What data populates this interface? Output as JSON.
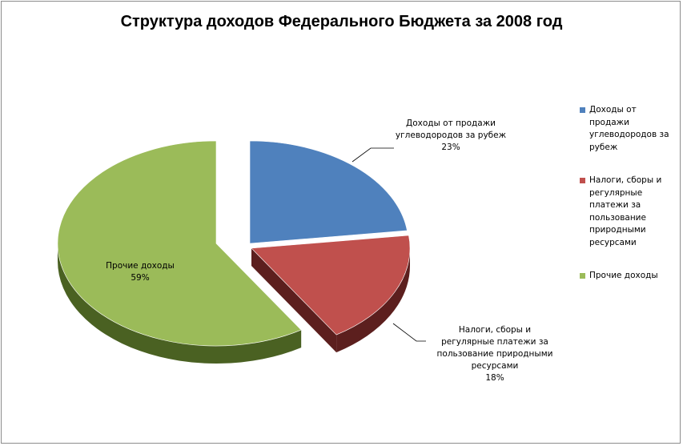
{
  "chart_data": {
    "type": "pie",
    "title": "Структура доходов Федерального Бюджета за 2008 год",
    "categories": [
      "Доходы от продажи углеводородов за рубеж",
      "Налоги, сборы и регулярные платежи за пользование природными ресурсами",
      "Прочие доходы"
    ],
    "values": [
      23,
      18,
      59
    ],
    "data_labels": [
      {
        "lines": [
          "Доходы от продажи",
          "углеводородов за рубеж"
        ],
        "pct": "23%"
      },
      {
        "lines": [
          "Налоги, сборы и",
          "регулярные платежи за",
          "пользование природными",
          "ресурсами"
        ],
        "pct": "18%"
      },
      {
        "lines": [
          "Прочие доходы"
        ],
        "pct": "59%"
      }
    ],
    "legend": {
      "placement": "right",
      "items": [
        {
          "lines": [
            "Доходы от",
            "продажи",
            "углеводородов за",
            "рубеж"
          ]
        },
        {
          "lines": [
            "Налоги, сборы и",
            "регулярные",
            "платежи за",
            "пользование",
            "природными",
            "ресурсами"
          ]
        },
        {
          "lines": [
            "Прочие доходы"
          ]
        }
      ]
    },
    "colors": [
      "#4f81bd",
      "#c0504d",
      "#9bbb59"
    ],
    "side_colors": [
      "#2c4a70",
      "#5c1f1e",
      "#4a6122"
    ],
    "exploded": true,
    "style": "3d-pie"
  }
}
